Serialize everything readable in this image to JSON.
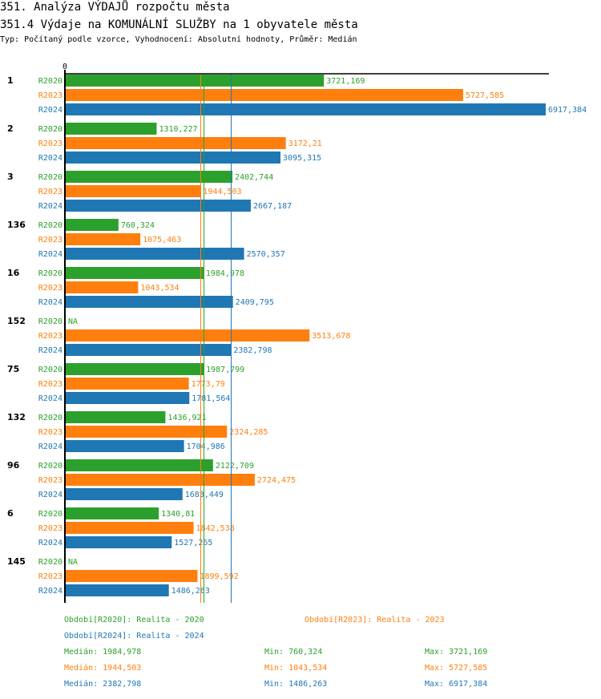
{
  "header": {
    "title": "351. Analýza VÝDAJŮ rozpočtu města",
    "subtitle": "351.4 Výdaje na KOMUNÁLNÍ SLUŽBY na 1 obyvatele města",
    "type_line": "Typ: Počítaný podle vzorce, Vyhodnocení: Absolutní hodnoty, Průměr: Medián"
  },
  "colors": {
    "R2020": "#2ca02c",
    "R2023": "#ff7f0e",
    "R2024": "#1f77b4",
    "axis": "#000000"
  },
  "chart_data": {
    "type": "bar",
    "orientation": "horizontal",
    "title": "351.4 Výdaje na KOMUNÁLNÍ SLUŽBY na 1 obyvatele města",
    "xlabel": "",
    "ylabel": "",
    "x_tick_labels": [
      "0"
    ],
    "xlim": [
      0,
      6917.384
    ],
    "grid": false,
    "categories": [
      "1",
      "2",
      "3",
      "136",
      "16",
      "152",
      "75",
      "132",
      "96",
      "6",
      "145"
    ],
    "series": [
      {
        "name": "R2020",
        "values": [
          3721.169,
          1310.227,
          2402.744,
          760.324,
          1984.978,
          null,
          1987.799,
          1436.921,
          2122.709,
          1340.81,
          null
        ],
        "labels": [
          "3721,169",
          "1310,227",
          "2402,744",
          "760,324",
          "1984,978",
          "NA",
          "1987,799",
          "1436,921",
          "2122,709",
          "1340,81",
          "NA"
        ]
      },
      {
        "name": "R2023",
        "values": [
          5727.585,
          3172.21,
          1944.503,
          1075.463,
          1043.534,
          3513.678,
          1773.79,
          2324.285,
          2724.475,
          1842.538,
          1899.592
        ],
        "labels": [
          "5727,585",
          "3172,21",
          "1944,503",
          "1075,463",
          "1043,534",
          "3513,678",
          "1773,79",
          "2324,285",
          "2724,475",
          "1842,538",
          "1899,592"
        ]
      },
      {
        "name": "R2024",
        "values": [
          6917.384,
          3095.315,
          2667.187,
          2570.357,
          2409.795,
          2382.798,
          1781.564,
          1704.986,
          1683.449,
          1527.265,
          1486.263
        ],
        "labels": [
          "6917,384",
          "3095,315",
          "2667,187",
          "2570,357",
          "2409,795",
          "2382,798",
          "1781,564",
          "1704,986",
          "1683,449",
          "1527,265",
          "1486,263"
        ]
      }
    ],
    "reference_lines": [
      {
        "series": "R2020",
        "kind": "median",
        "value": 1984.978
      },
      {
        "series": "R2023",
        "kind": "median",
        "value": 1944.503
      },
      {
        "series": "R2024",
        "kind": "median",
        "value": 2382.798
      }
    ],
    "legend": [
      {
        "series": "R2020",
        "text": "Období[R2020]: Realita - 2020"
      },
      {
        "series": "R2023",
        "text": "Období[R2023]: Realita - 2023"
      },
      {
        "series": "R2024",
        "text": "Období[R2024]: Realita - 2024"
      }
    ],
    "legend_position": "bottom",
    "stats": [
      {
        "series": "R2020",
        "median": "Medián: 1984,978",
        "min": "Min: 760,324",
        "max": "Max: 3721,169"
      },
      {
        "series": "R2023",
        "median": "Medián: 1944,503",
        "min": "Min: 1043,534",
        "max": "Max: 5727,585"
      },
      {
        "series": "R2024",
        "median": "Medián: 2382,798",
        "min": "Min: 1486,263",
        "max": "Max: 6917,384"
      }
    ]
  }
}
